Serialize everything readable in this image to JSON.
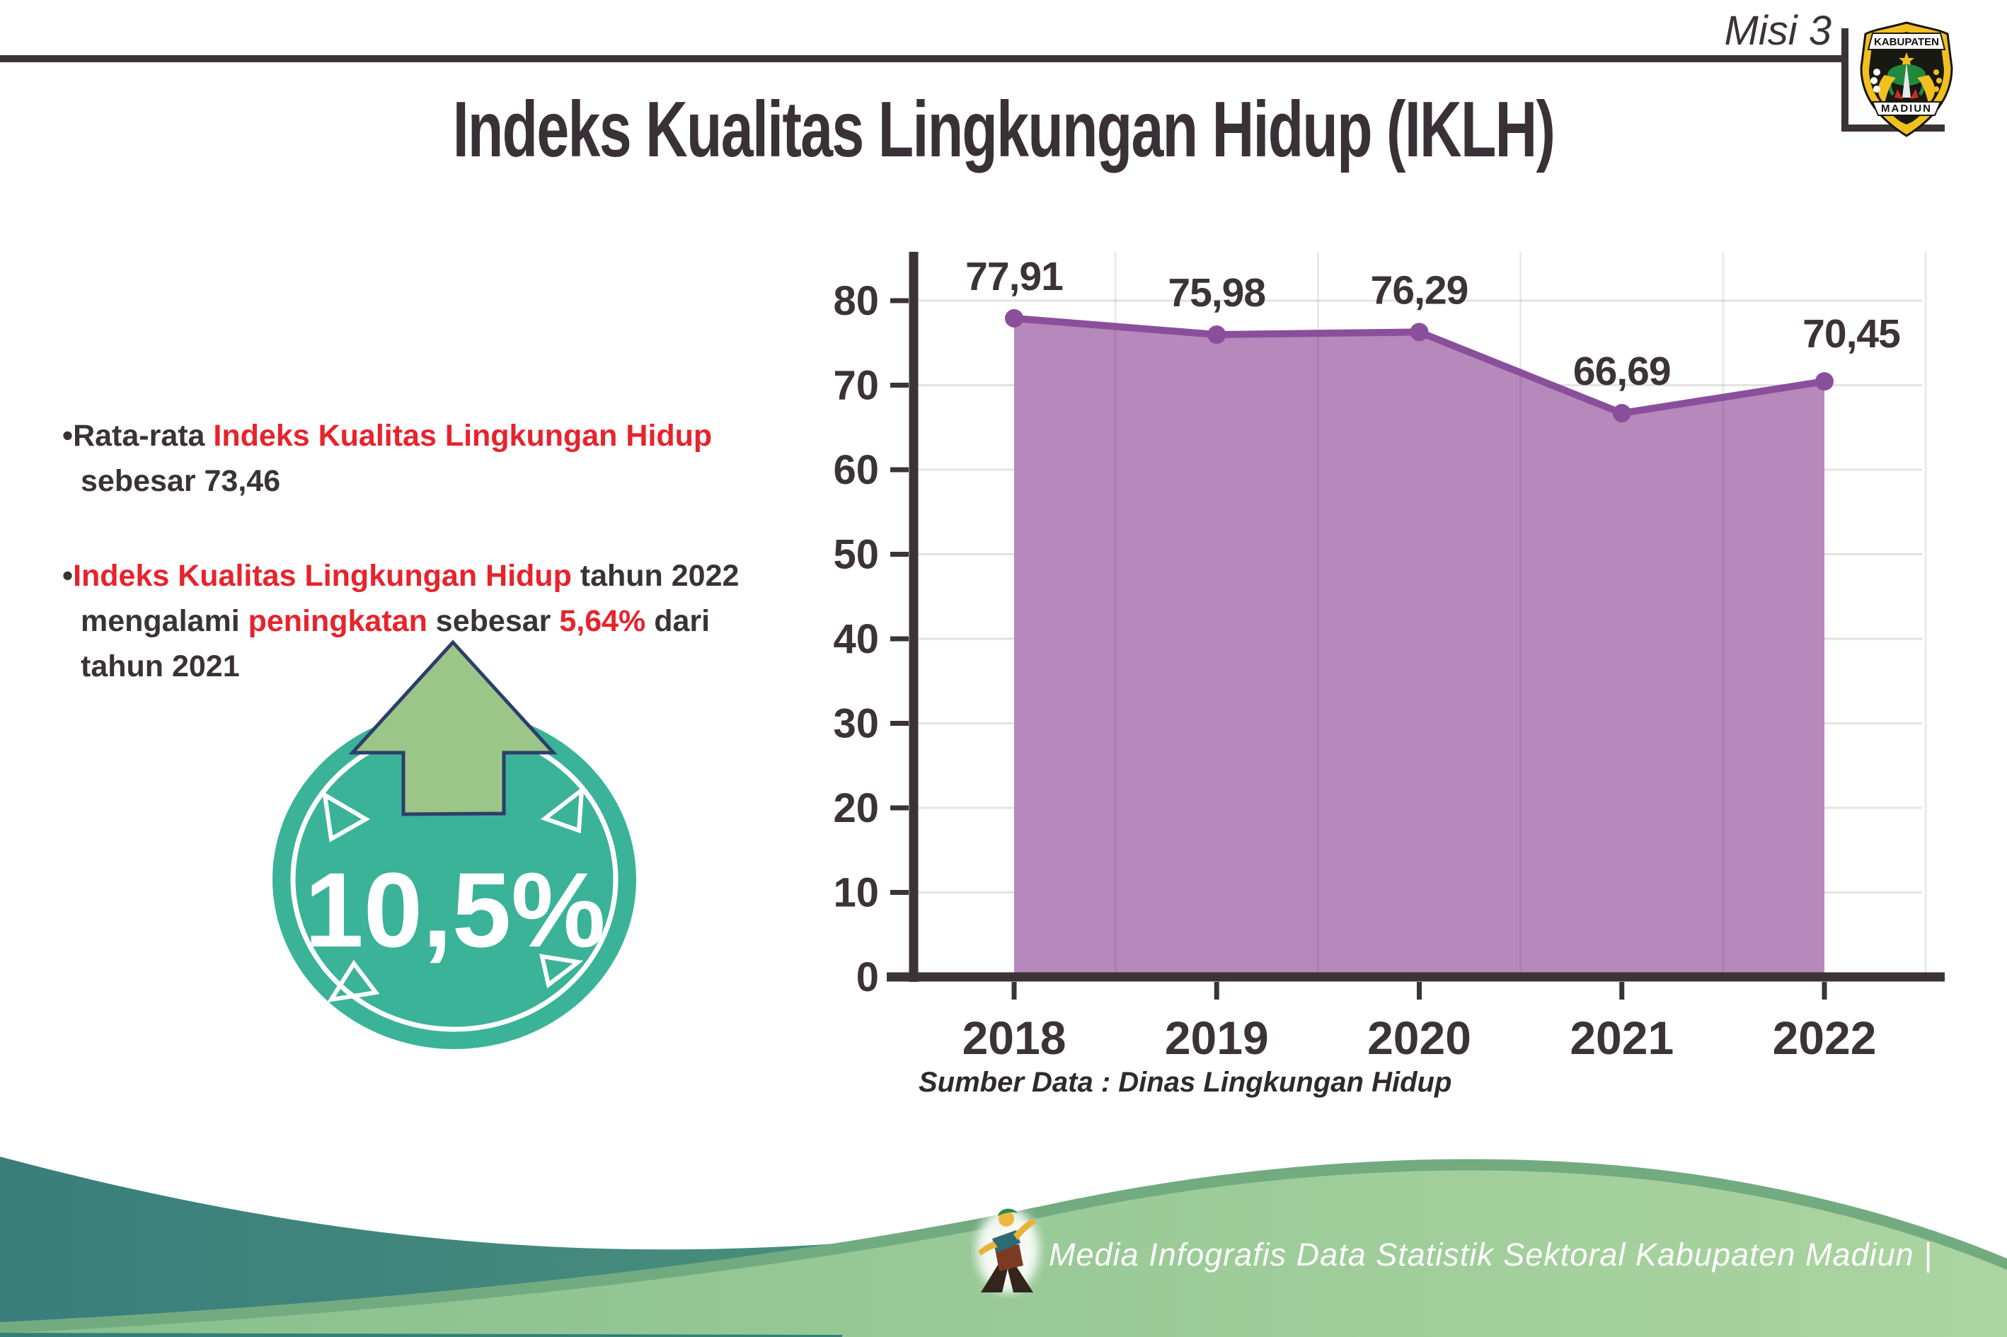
{
  "header": {
    "misi": "Misi 3",
    "title": "Indeks Kualitas Lingkungan Hidup (IKLH)"
  },
  "logo": {
    "top_text": "KABUPATEN",
    "bottom_text": "MADIUN"
  },
  "insights": {
    "bullet1": {
      "bullet": "•",
      "prefix": "Rata-rata ",
      "highlight": "Indeks Kualitas Lingkungan Hidup",
      "line2": "sebesar 73,46"
    },
    "bullet2": {
      "bullet": "•",
      "line1_highlight": "Indeks Kualitas Lingkungan Hidup",
      "line1_rest": " tahun 2022",
      "line2_part1": "mengalami ",
      "line2_highlight1": "peningkatan",
      "line2_part2": " sebesar ",
      "line2_highlight2": "5,64%",
      "line2_part3": " dari",
      "line3": "tahun 2021"
    }
  },
  "badge": {
    "value": "10,5%",
    "circle_color": "#3ab398",
    "arrow_color": "#9cc687",
    "arrow_outline": "#2c3e6b"
  },
  "chart_data": {
    "type": "area",
    "series_name": "IKLH",
    "categories": [
      "2018",
      "2019",
      "2020",
      "2021",
      "2022"
    ],
    "values": [
      77.91,
      75.98,
      76.29,
      66.69,
      70.45
    ],
    "point_labels": [
      "77,91",
      "75,98",
      "76,29",
      "66,69",
      "70,45"
    ],
    "ylim": [
      0,
      80
    ],
    "ytick_step": 10,
    "grid": true,
    "legend": "none",
    "fill_color": "#b688bb",
    "line_color": "#8a4f9b",
    "source": "Sumber Data : Dinas Lingkungan Hidup"
  },
  "footer": {
    "credit": "Media Infografis Data Statistik Sektoral Kabupaten Madiun |"
  },
  "colors": {
    "text_dark": "#3a3335",
    "accent_red": "#e7232c",
    "wave_teal": "#3a7e7c",
    "wave_green_light": "#8cc492",
    "wave_green_rim": "#72ab80"
  }
}
